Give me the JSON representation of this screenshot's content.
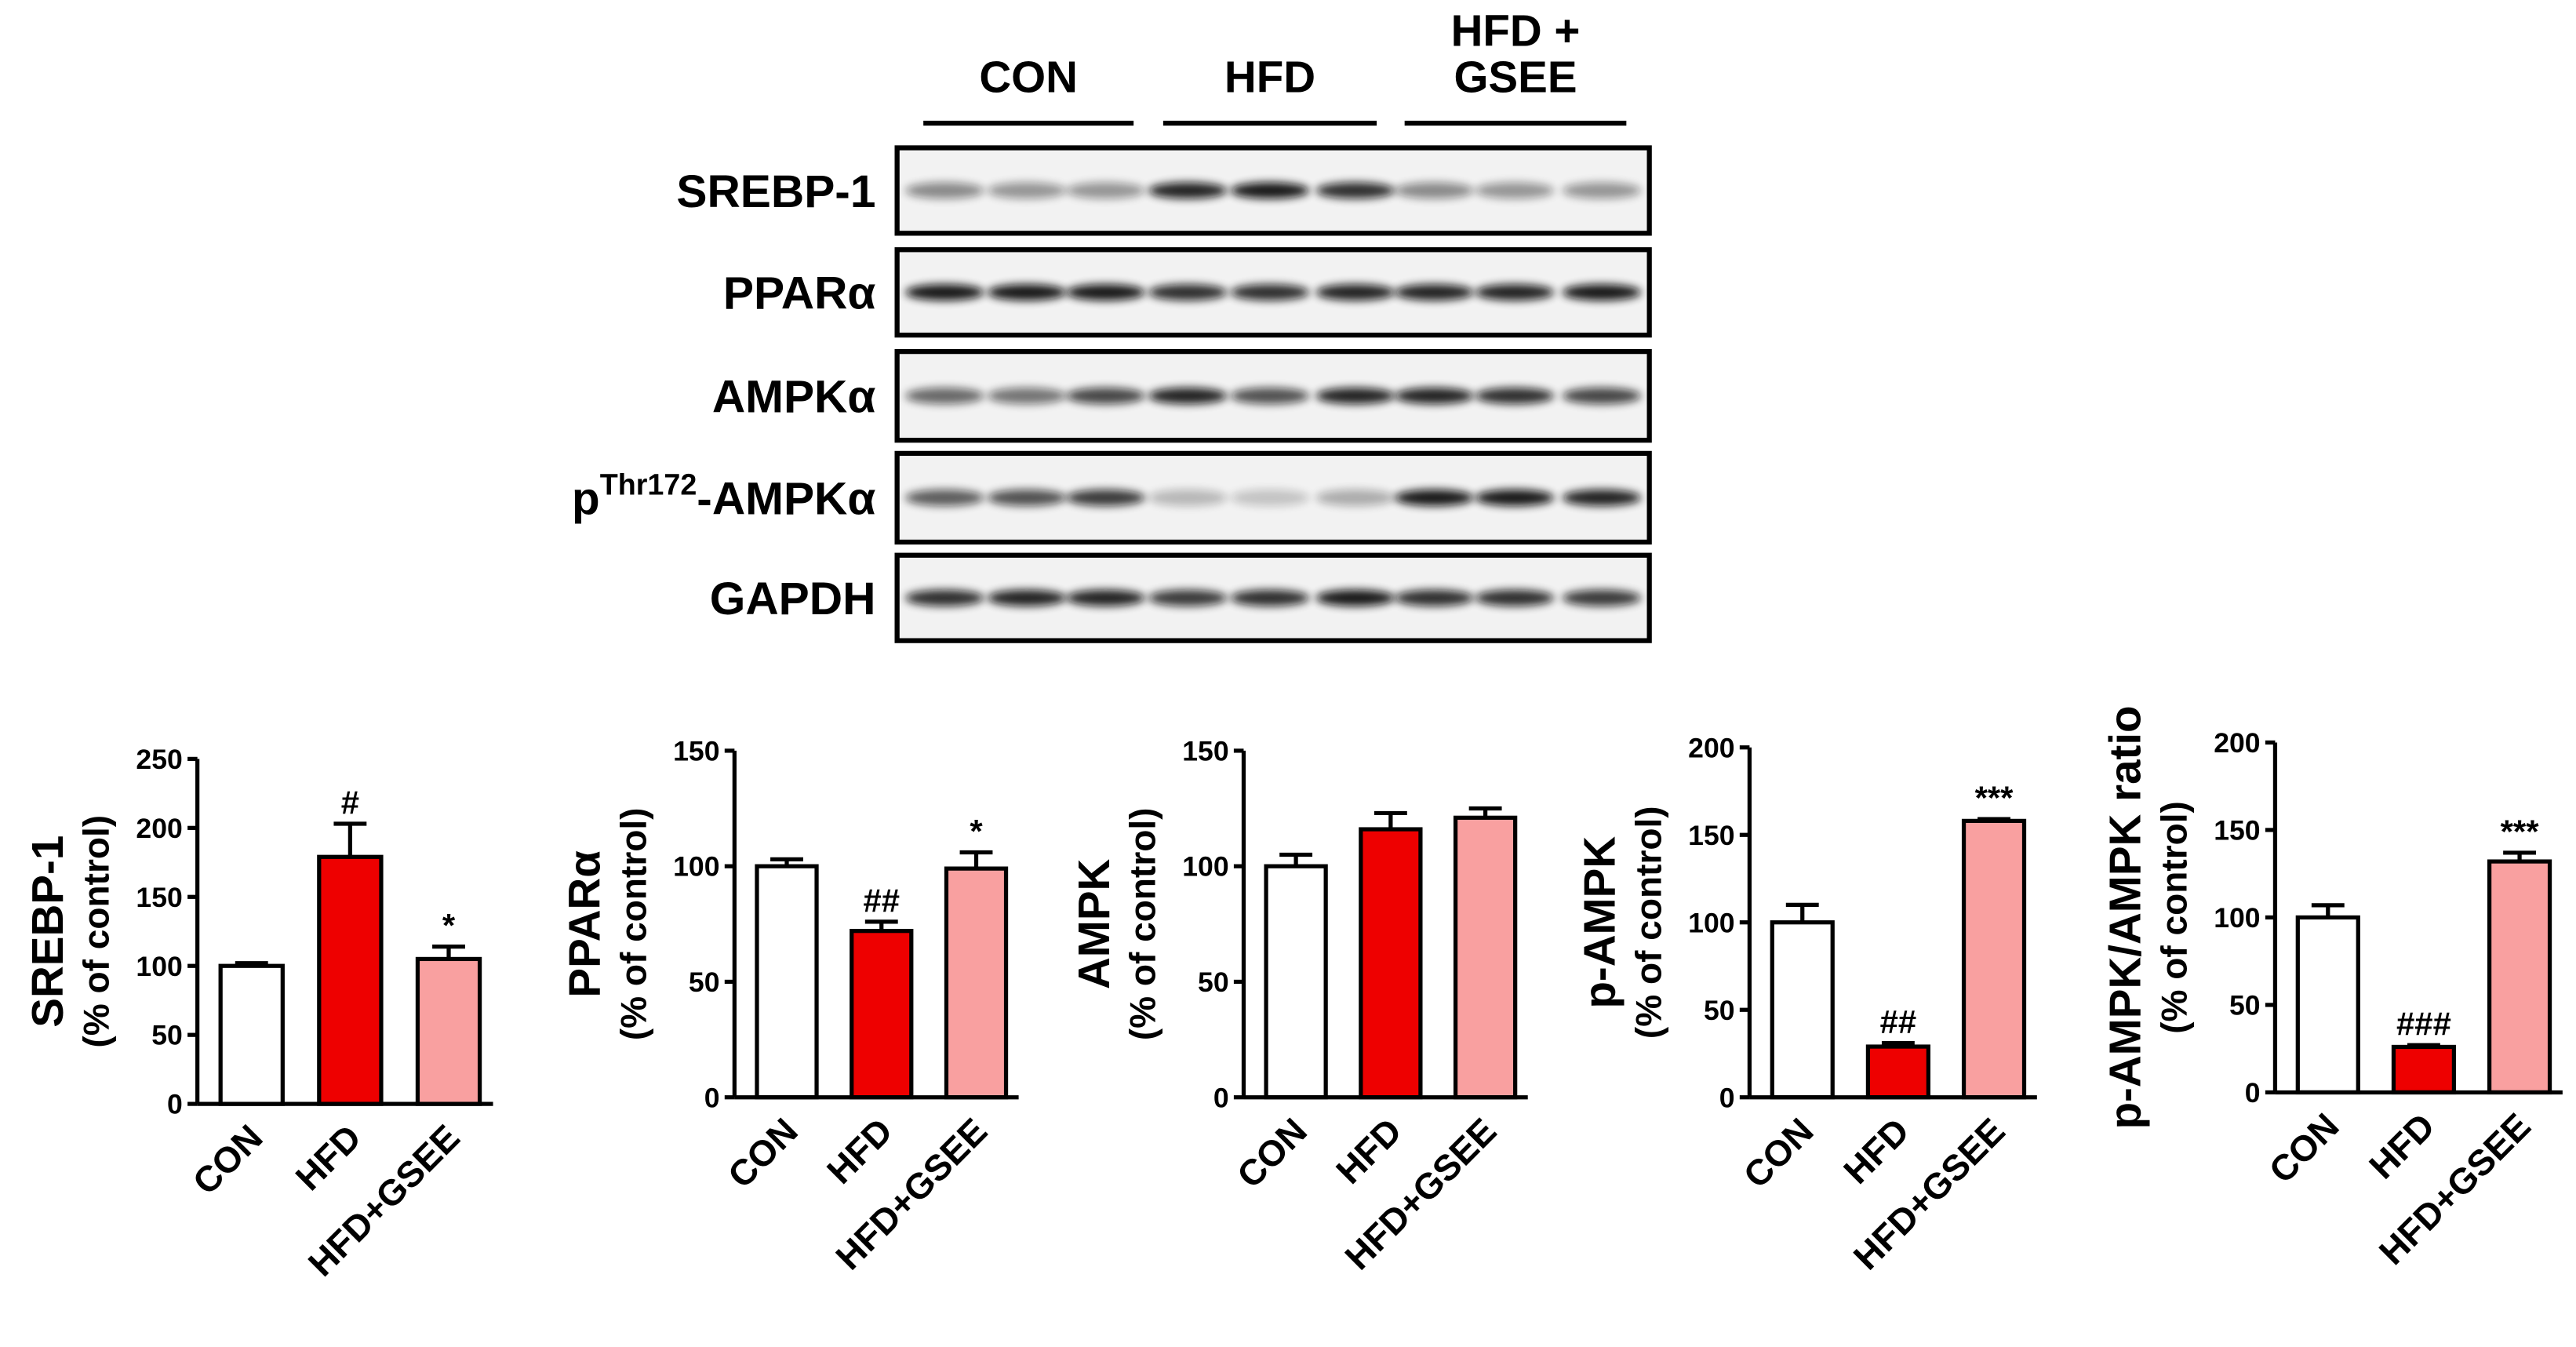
{
  "blot": {
    "groups": [
      [
        "CON"
      ],
      [
        "HFD"
      ],
      [
        "HFD +",
        "GSEE"
      ]
    ],
    "proteins": [
      "SREBP-1",
      "PPARα",
      "AMPKα",
      {
        "base": "p",
        "sup": "Thr172",
        "rest": "-AMPKα"
      },
      "GAPDH"
    ]
  },
  "chart_data": [
    {
      "type": "bar",
      "ylabel": [
        "SREBP-1",
        "(% of control)"
      ],
      "categories": [
        "CON",
        "HFD",
        "HFD+GSEE"
      ],
      "values": [
        100,
        179,
        105
      ],
      "errors": [
        2,
        24,
        9
      ],
      "colors": [
        "#ffffff",
        "#ee0000",
        "#f9a0a0"
      ],
      "annotations": [
        null,
        "#",
        "*"
      ],
      "ylim": [
        0,
        250
      ],
      "yticks": [
        0,
        50,
        100,
        150,
        200,
        250
      ]
    },
    {
      "type": "bar",
      "ylabel": [
        "PPARα",
        "(% of control)"
      ],
      "categories": [
        "CON",
        "HFD",
        "HFD+GSEE"
      ],
      "values": [
        100,
        72,
        99
      ],
      "errors": [
        3,
        4,
        7
      ],
      "colors": [
        "#ffffff",
        "#ee0000",
        "#f9a0a0"
      ],
      "annotations": [
        null,
        "##",
        "*"
      ],
      "ylim": [
        0,
        150
      ],
      "yticks": [
        0,
        50,
        100,
        150
      ]
    },
    {
      "type": "bar",
      "ylabel": [
        "AMPK",
        "(% of control)"
      ],
      "categories": [
        "CON",
        "HFD",
        "HFD+GSEE"
      ],
      "values": [
        100,
        116,
        121
      ],
      "errors": [
        5,
        7,
        4
      ],
      "colors": [
        "#ffffff",
        "#ee0000",
        "#f9a0a0"
      ],
      "ylim": [
        0,
        150
      ],
      "yticks": [
        0,
        50,
        100,
        150
      ]
    },
    {
      "type": "bar",
      "ylabel": [
        "p-AMPK",
        "(% of control)"
      ],
      "categories": [
        "CON",
        "HFD",
        "HFD+GSEE"
      ],
      "values": [
        100,
        29,
        158
      ],
      "errors": [
        10,
        2,
        1
      ],
      "colors": [
        "#ffffff",
        "#ee0000",
        "#f9a0a0"
      ],
      "annotations": [
        null,
        "##",
        "***"
      ],
      "ylim": [
        0,
        200
      ],
      "yticks": [
        0,
        50,
        100,
        150,
        200
      ]
    },
    {
      "type": "bar",
      "ylabel": [
        "p-AMPK/AMPK ratio",
        "(% of control)"
      ],
      "categories": [
        "CON",
        "HFD",
        "HFD+GSEE"
      ],
      "values": [
        100,
        26,
        132
      ],
      "errors": [
        7,
        1,
        5
      ],
      "colors": [
        "#ffffff",
        "#ee0000",
        "#f9a0a0"
      ],
      "annotations": [
        null,
        "###",
        "***"
      ],
      "ylim": [
        0,
        200
      ],
      "yticks": [
        0,
        50,
        100,
        150,
        200
      ]
    }
  ]
}
